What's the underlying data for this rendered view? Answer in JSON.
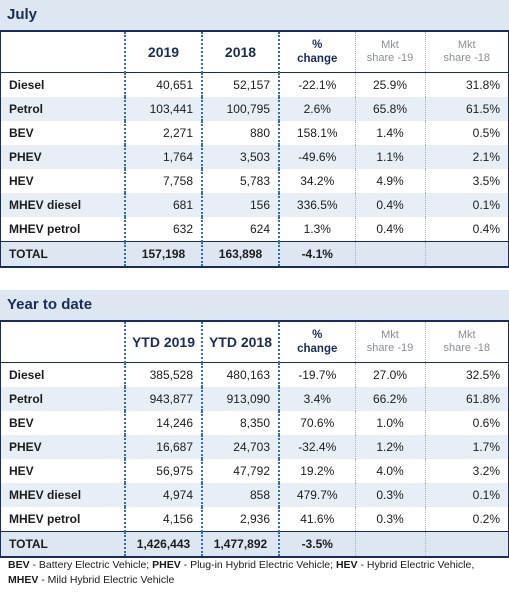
{
  "july": {
    "title": "July",
    "headers": [
      "",
      "2019",
      "2018",
      "% change",
      "Mkt share -19",
      "Mkt share -18"
    ],
    "rows": [
      {
        "label": "Diesel",
        "v1": "40,651",
        "v2": "52,157",
        "chg": "-22.1%",
        "m1": "25.9%",
        "m2": "31.8%"
      },
      {
        "label": "Petrol",
        "v1": "103,441",
        "v2": "100,795",
        "chg": "2.6%",
        "m1": "65.8%",
        "m2": "61.5%"
      },
      {
        "label": "BEV",
        "v1": "2,271",
        "v2": "880",
        "chg": "158.1%",
        "m1": "1.4%",
        "m2": "0.5%"
      },
      {
        "label": "PHEV",
        "v1": "1,764",
        "v2": "3,503",
        "chg": "-49.6%",
        "m1": "1.1%",
        "m2": "2.1%"
      },
      {
        "label": "HEV",
        "v1": "7,758",
        "v2": "5,783",
        "chg": "34.2%",
        "m1": "4.9%",
        "m2": "3.5%"
      },
      {
        "label": "MHEV diesel",
        "v1": "681",
        "v2": "156",
        "chg": "336.5%",
        "m1": "0.4%",
        "m2": "0.1%"
      },
      {
        "label": "MHEV petrol",
        "v1": "632",
        "v2": "624",
        "chg": "1.3%",
        "m1": "0.4%",
        "m2": "0.4%"
      }
    ],
    "total": {
      "label": "TOTAL",
      "v1": "157,198",
      "v2": "163,898",
      "chg": "-4.1%"
    }
  },
  "ytd": {
    "title": "Year to date",
    "headers": [
      "",
      "YTD 2019",
      "YTD 2018",
      "% change",
      "Mkt share -19",
      "Mkt share -18"
    ],
    "rows": [
      {
        "label": "Diesel",
        "v1": "385,528",
        "v2": "480,163",
        "chg": "-19.7%",
        "m1": "27.0%",
        "m2": "32.5%"
      },
      {
        "label": "Petrol",
        "v1": "943,877",
        "v2": "913,090",
        "chg": "3.4%",
        "m1": "66.2%",
        "m2": "61.8%"
      },
      {
        "label": "BEV",
        "v1": "14,246",
        "v2": "8,350",
        "chg": "70.6%",
        "m1": "1.0%",
        "m2": "0.6%"
      },
      {
        "label": "PHEV",
        "v1": "16,687",
        "v2": "24,703",
        "chg": "-32.4%",
        "m1": "1.2%",
        "m2": "1.7%"
      },
      {
        "label": "HEV",
        "v1": "56,975",
        "v2": "47,792",
        "chg": "19.2%",
        "m1": "4.0%",
        "m2": "3.2%"
      },
      {
        "label": "MHEV diesel",
        "v1": "4,974",
        "v2": "858",
        "chg": "479.7%",
        "m1": "0.3%",
        "m2": "0.1%"
      },
      {
        "label": "MHEV petrol",
        "v1": "4,156",
        "v2": "2,936",
        "chg": "41.6%",
        "m1": "0.3%",
        "m2": "0.2%"
      }
    ],
    "total": {
      "label": "TOTAL",
      "v1": "1,426,443",
      "v2": "1,477,892",
      "chg": "-3.5%"
    }
  },
  "footnote": {
    "bev_abbr": "BEV",
    "bev_text": " - Battery Electric Vehicle; ",
    "phev_abbr": "PHEV",
    "phev_text": " - Plug-in Hybrid Electric Vehicle; ",
    "hev_abbr": "HEV",
    "hev_text": " - Hybrid Electric Vehicle,",
    "mhev_abbr": "MHEV",
    "mhev_text": " - Mild Hybrid Electric Vehicle"
  }
}
